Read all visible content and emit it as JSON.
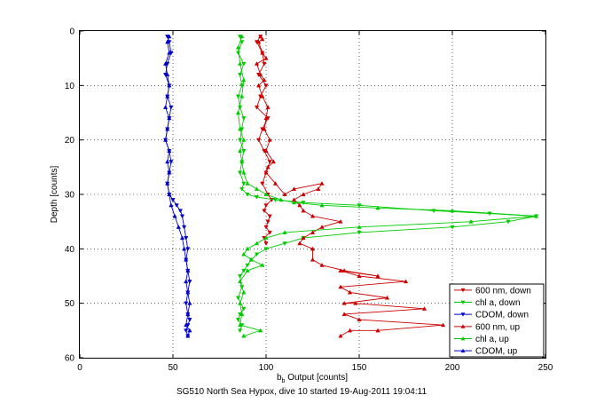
{
  "chart_data": {
    "type": "line",
    "xlabel_main": "b",
    "xlabel_sub": "b",
    "xlabel_rest": " Output [counts]",
    "ylabel": "Depth [counts]",
    "caption": "SG510 North Sea Hypox, dive 10 started 19-Aug-2011 19:04:11",
    "xlim": [
      0,
      250
    ],
    "ylim": [
      0,
      60
    ],
    "y_reversed": true,
    "x_ticks": [
      0,
      50,
      100,
      150,
      200,
      250
    ],
    "y_ticks": [
      0,
      10,
      20,
      30,
      40,
      50,
      60
    ],
    "grid": true,
    "legend_position": "bottom-right",
    "series": [
      {
        "name": "600 nm, down",
        "color": "#cc0000",
        "marker": "triangle-down",
        "x": [
          97,
          95,
          98,
          99,
          96,
          100,
          97,
          95,
          101,
          98,
          96,
          99,
          102,
          100,
          98,
          101,
          103,
          100,
          99,
          102,
          101,
          100,
          102,
          99,
          100
        ],
        "y": [
          1,
          2,
          4,
          6,
          8,
          10,
          12,
          14,
          16,
          18,
          20,
          22,
          24,
          26,
          28,
          30,
          31,
          32,
          33,
          34,
          35,
          36,
          37,
          38,
          39
        ]
      },
      {
        "name": "chl a, down",
        "color": "#00cc00",
        "marker": "triangle-down",
        "x": [
          86,
          87,
          85,
          88,
          86,
          87,
          85,
          86,
          88,
          87,
          86,
          88,
          87,
          86,
          88,
          87,
          90,
          95,
          105,
          120,
          150,
          190,
          220,
          245,
          230,
          200,
          150,
          120,
          110,
          100,
          95,
          92,
          90,
          88,
          86,
          87,
          85,
          88,
          86,
          85,
          87,
          86
        ],
        "y": [
          1,
          2,
          4,
          6,
          8,
          10,
          12,
          14,
          16,
          18,
          20,
          22,
          24,
          26,
          28,
          29,
          30,
          30.5,
          31,
          31.5,
          32,
          33,
          33.5,
          34,
          35,
          36,
          37,
          38,
          39,
          40,
          41,
          42,
          43,
          44,
          45,
          47,
          49,
          51,
          52,
          53,
          54,
          55
        ]
      },
      {
        "name": "CDOM, down",
        "color": "#0000cc",
        "marker": "triangle-down",
        "x": [
          47,
          48,
          49,
          47,
          46,
          48,
          47,
          49,
          48,
          47,
          46,
          48,
          49,
          48,
          47,
          48,
          50,
          52,
          54,
          55,
          56,
          57,
          58,
          57,
          58,
          59,
          58,
          57,
          58,
          59,
          58,
          57,
          58
        ],
        "y": [
          1,
          2,
          4,
          6,
          8,
          10,
          12,
          14,
          16,
          18,
          20,
          22,
          24,
          26,
          28,
          30,
          31,
          32,
          33,
          34,
          36,
          38,
          40,
          42,
          44,
          46,
          48,
          50,
          52,
          53,
          54,
          55,
          56
        ]
      },
      {
        "name": "600 nm, up",
        "color": "#cc0000",
        "marker": "triangle-up",
        "x": [
          140,
          145,
          160,
          195,
          150,
          142,
          185,
          148,
          142,
          165,
          145,
          140,
          175,
          150,
          140,
          160,
          142,
          130,
          125,
          125,
          118,
          120,
          125,
          130,
          140,
          125,
          120,
          118,
          115,
          120,
          128,
          130,
          115,
          110,
          105,
          100,
          101,
          104,
          100,
          102,
          99,
          100,
          101,
          98,
          96,
          99,
          97,
          95,
          100,
          98,
          96,
          98,
          97
        ],
        "y": [
          56,
          55,
          55,
          54,
          53,
          52,
          51,
          50,
          50,
          49,
          48,
          47,
          46,
          45,
          44,
          45,
          44,
          43,
          42,
          40,
          39,
          38,
          37,
          36,
          35,
          34,
          33,
          32,
          31,
          30,
          29,
          28,
          29,
          30,
          28,
          26,
          25,
          24,
          22,
          20,
          18,
          16,
          14,
          12,
          10,
          9,
          8,
          6,
          5,
          4,
          2,
          1.5,
          1
        ]
      },
      {
        "name": "chl a, up",
        "color": "#00cc00",
        "marker": "triangle-up",
        "x": [
          88,
          97,
          86,
          87,
          86,
          88,
          86,
          90,
          98,
          92,
          88,
          90,
          95,
          100,
          110,
          150,
          210,
          245,
          200,
          160,
          130,
          115,
          108,
          100,
          95,
          90,
          88,
          87,
          86,
          88,
          86,
          85,
          87,
          88,
          86,
          85,
          87
        ],
        "y": [
          56,
          55,
          54,
          52,
          50,
          48,
          46,
          44,
          43,
          42,
          41,
          40,
          39,
          38,
          37,
          36,
          35,
          34,
          33,
          32.5,
          32,
          31.5,
          31,
          30,
          29,
          28,
          26,
          24,
          22,
          20,
          18,
          15,
          12,
          9,
          6,
          3,
          1
        ]
      },
      {
        "name": "CDOM, up",
        "color": "#0000cc",
        "marker": "triangle-up",
        "x": [
          58,
          59,
          57,
          58,
          59,
          58,
          57,
          58,
          57,
          56,
          55,
          53,
          51,
          49,
          48,
          47,
          48,
          47,
          48,
          46,
          47,
          48,
          46,
          47,
          48,
          47,
          46,
          48,
          47,
          48
        ],
        "y": [
          56,
          55,
          54,
          52,
          50,
          48,
          46,
          44,
          42,
          40,
          38,
          36,
          34,
          32,
          30,
          28,
          26,
          24,
          22,
          20,
          18,
          16,
          14,
          12,
          10,
          8,
          6,
          4,
          2,
          1
        ]
      }
    ]
  }
}
